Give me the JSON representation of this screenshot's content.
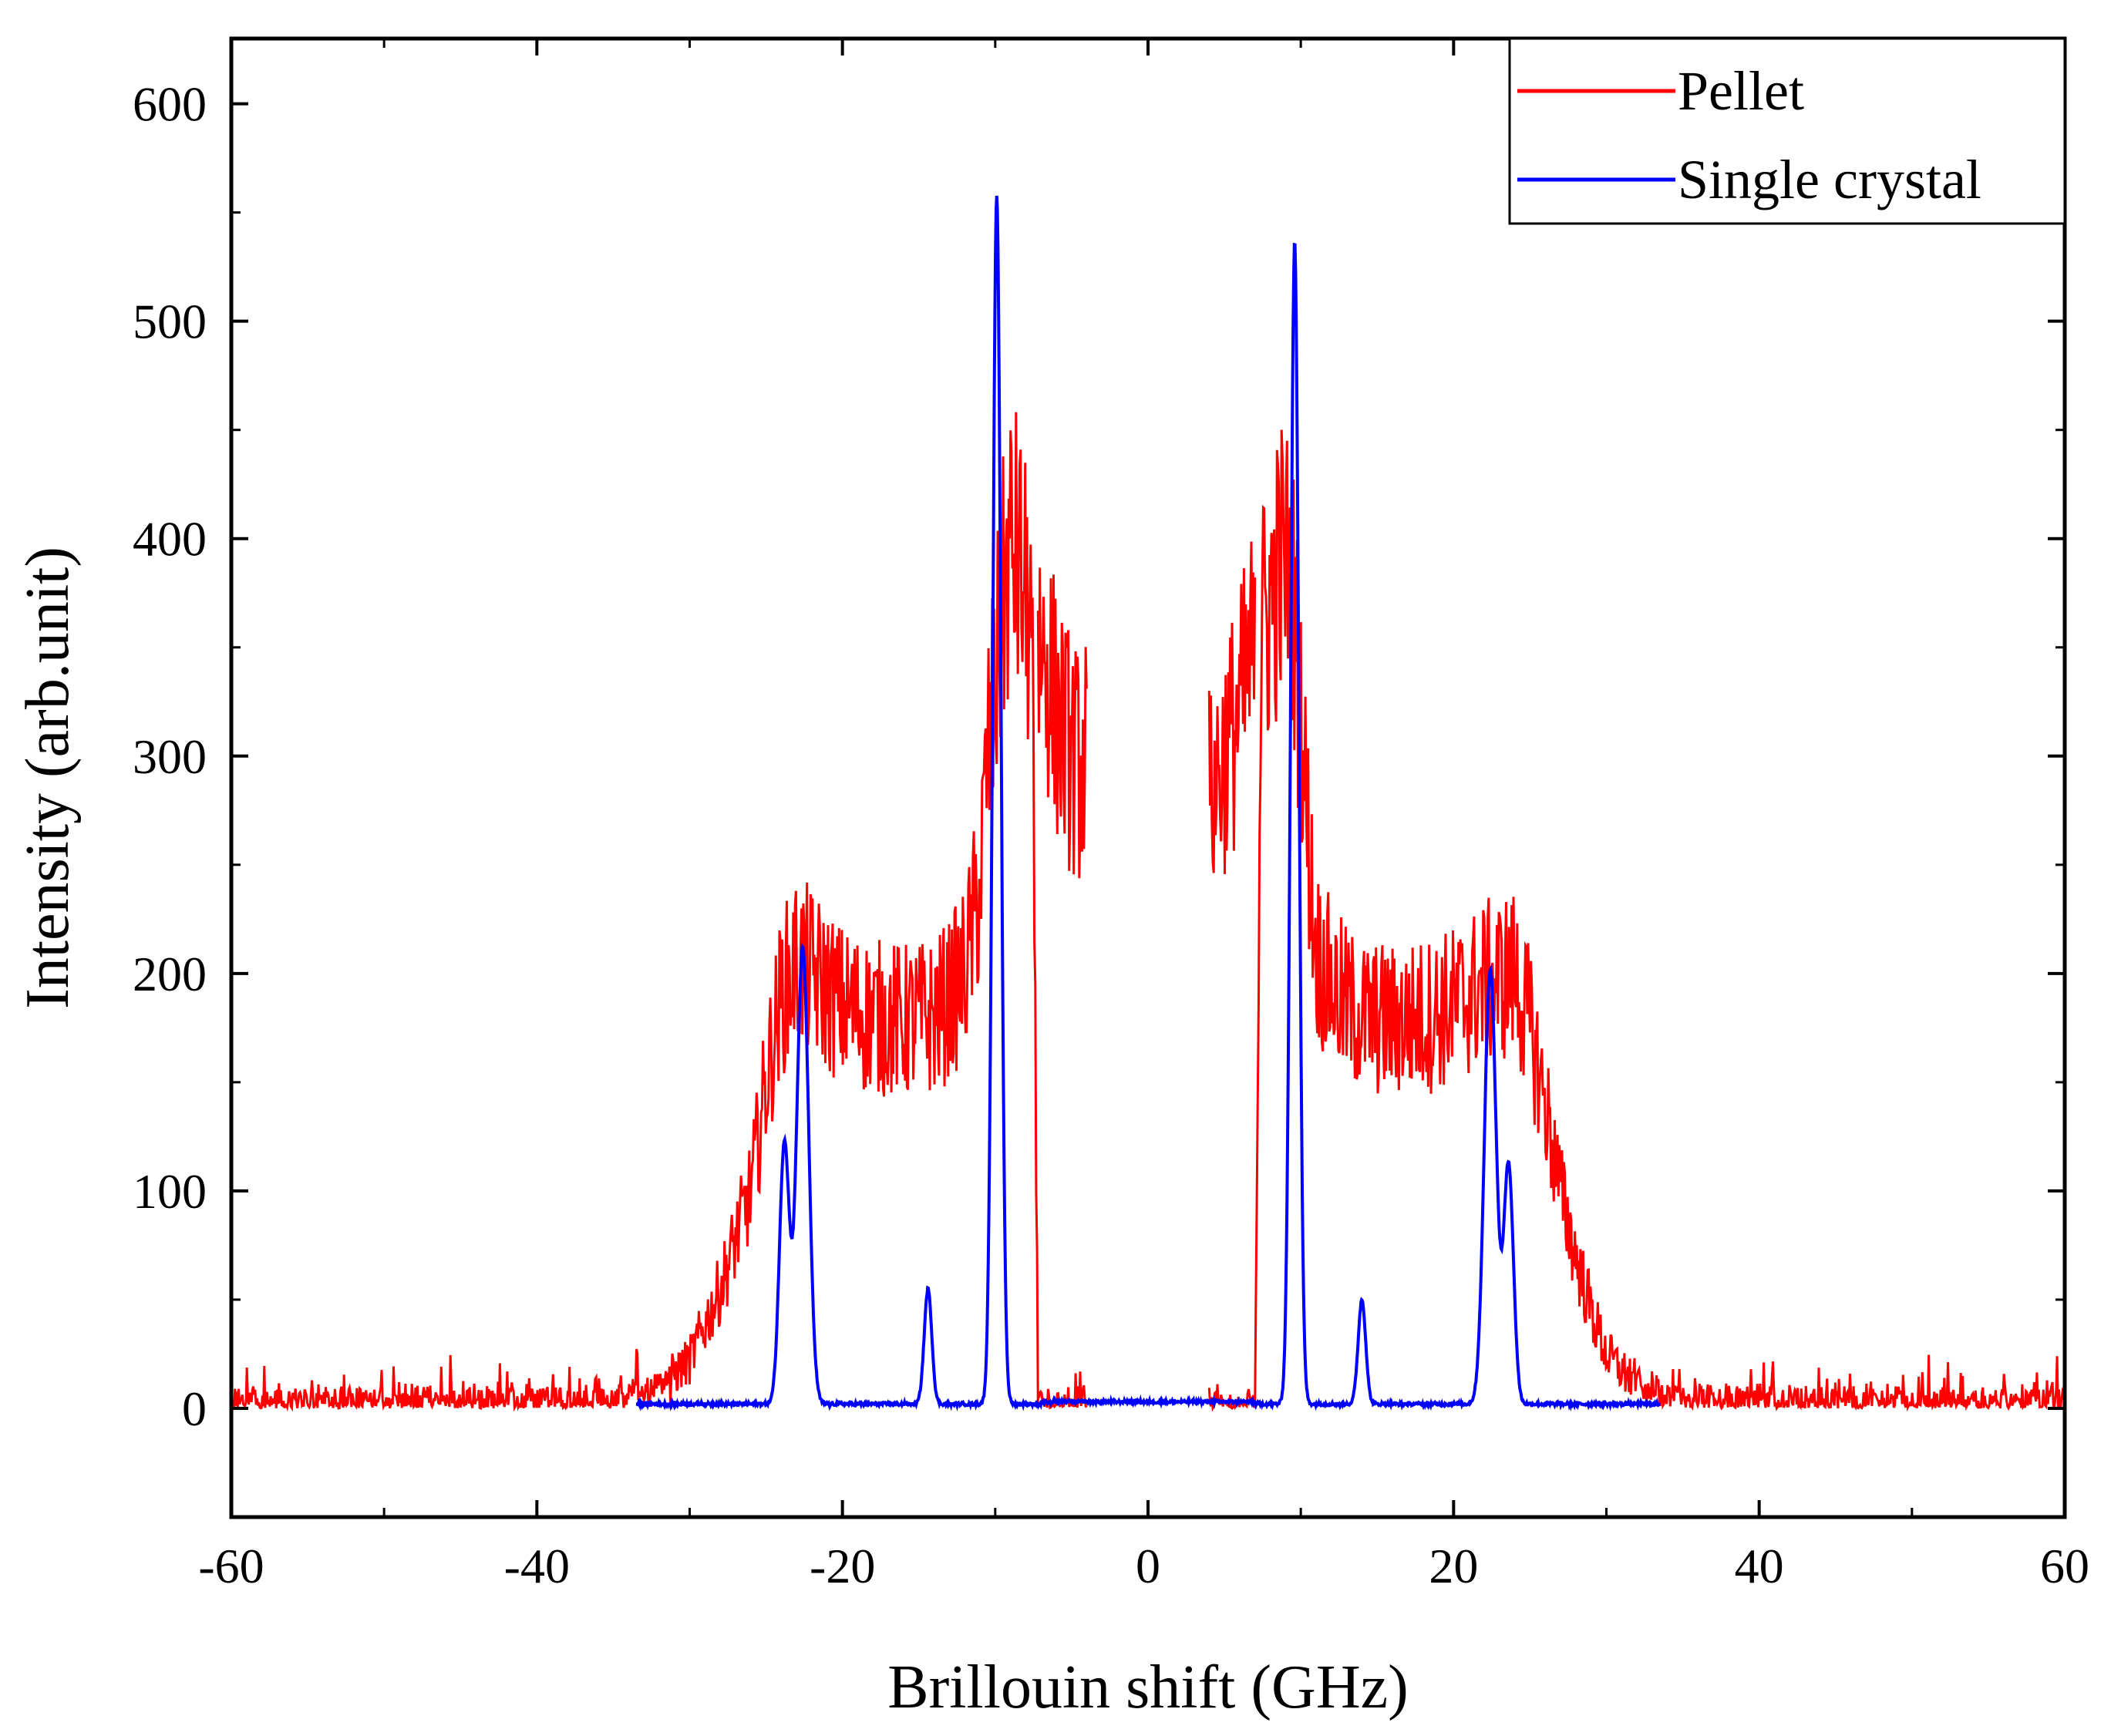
{
  "chart_data": {
    "type": "line",
    "title": "",
    "xlabel": "Brillouin shift (GHz)",
    "ylabel": "Intensity (arb.unit)",
    "xlim": [
      -60,
      60
    ],
    "ylim": [
      -50,
      630
    ],
    "xticks": [
      -60,
      -40,
      -20,
      0,
      20,
      40,
      60
    ],
    "yticks": [
      0,
      100,
      200,
      300,
      400,
      500,
      600
    ],
    "grid": false,
    "legend_position": "top-right",
    "series": [
      {
        "name": "Pellet",
        "color": "#ff0000",
        "style": "noisy",
        "x_range": [
          -60,
          60
        ],
        "segments": [
          {
            "x": [
              -60,
              -50,
              -40,
              -34,
              -32,
              -30,
              -28,
              -26,
              -25,
              -24,
              -23,
              -22,
              -20,
              -18,
              -16,
              -14,
              -13,
              -12,
              -11,
              -10.5,
              -10,
              -9.5,
              -9,
              -8.5,
              -8,
              -7.6,
              -7.4,
              -7.2
            ],
            "y": [
              3,
              3,
              4,
              6,
              10,
              22,
              55,
              100,
              150,
              190,
              205,
              200,
              185,
              180,
              178,
              180,
              188,
              200,
              240,
              300,
              330,
              370,
              395,
              390,
              370,
              355,
              180,
              5
            ]
          },
          {
            "x": [
              -7.2,
              -6,
              -5,
              -4
            ],
            "y": [
              2,
              2,
              2,
              2
            ]
          },
          {
            "x": [
              -7.2,
              -6.5,
              -6,
              -5.5,
              -5,
              -4.5,
              -4
            ],
            "y": [
              355,
              340,
              320,
              310,
              300,
              295,
              300
            ],
            "kind": "band"
          },
          {
            "x": [
              4,
              5,
              6,
              7
            ],
            "y": [
              2,
              2,
              2,
              2
            ]
          },
          {
            "x": [
              4,
              4.5,
              5,
              5.5,
              6,
              6.5,
              7
            ],
            "y": [
              280,
              290,
              300,
              310,
              320,
              335,
              350
            ],
            "kind": "band"
          },
          {
            "x": [
              7,
              7.2,
              7.4,
              8,
              8.5,
              9,
              9.5,
              10,
              10.5,
              11,
              12,
              13,
              14,
              16,
              18,
              20,
              22,
              24,
              25,
              26,
              27,
              28,
              29,
              30,
              32,
              34,
              40,
              50,
              60
            ],
            "y": [
              5,
              180,
              355,
              370,
              385,
              390,
              370,
              320,
              260,
              210,
              195,
              185,
              180,
              178,
              180,
              185,
              195,
              200,
              175,
              140,
              100,
              70,
              45,
              25,
              10,
              6,
              4,
              3,
              3
            ]
          }
        ]
      },
      {
        "name": "Single crystal",
        "color": "#0000ff",
        "style": "smooth",
        "x_range": [
          -33.5,
          33.5
        ],
        "baseline": 2,
        "center_line": {
          "x": [
            -7,
            7
          ],
          "y": 3
        },
        "peaks": [
          {
            "x": -23.8,
            "y": 120,
            "width": 0.45
          },
          {
            "x": -22.6,
            "y": 210,
            "width": 0.55
          },
          {
            "x": -14.4,
            "y": 53,
            "width": 0.35
          },
          {
            "x": -9.9,
            "y": 555,
            "width": 0.38
          },
          {
            "x": 9.6,
            "y": 535,
            "width": 0.38
          },
          {
            "x": 14.0,
            "y": 48,
            "width": 0.35
          },
          {
            "x": 22.4,
            "y": 200,
            "width": 0.55
          },
          {
            "x": 23.6,
            "y": 110,
            "width": 0.45
          }
        ]
      }
    ]
  }
}
